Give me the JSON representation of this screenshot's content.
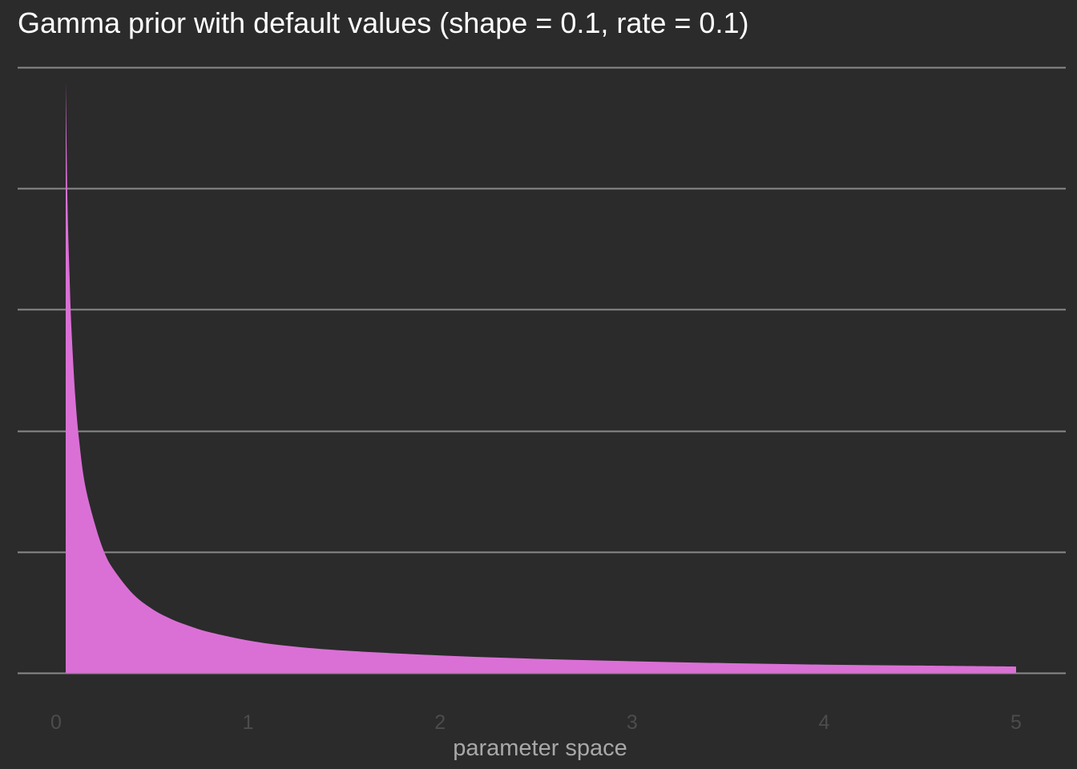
{
  "chart_data": {
    "type": "area",
    "title": "Gamma prior with default values (shape = 0.1, rate = 0.1)",
    "subtitle": "",
    "xlabel": "parameter space",
    "ylabel": "",
    "xlim": [
      0,
      5
    ],
    "ylim": [
      0,
      0.125
    ],
    "x_ticks": [
      0,
      1,
      2,
      3,
      4,
      5
    ],
    "x_tick_labels": [
      "0",
      "1",
      "2",
      "3",
      "4",
      "5"
    ],
    "y_gridlines": [
      0,
      0.025,
      0.05,
      0.075,
      0.1,
      0.125
    ],
    "y_tick_labels_shown": false,
    "grid": true,
    "legend": "none",
    "fill_color": "#da70d6",
    "background_color": "#2b2b2b",
    "series": [
      {
        "x": [
          0.05,
          0.06,
          0.07,
          0.08,
          0.1,
          0.12,
          0.15,
          0.2,
          0.25,
          0.3,
          0.4,
          0.5,
          0.6,
          0.7,
          0.8,
          1.0,
          1.2,
          1.5,
          2.0,
          2.5,
          3.0,
          3.5,
          4.0,
          4.5,
          5.0
        ],
        "y": [
          0.122,
          0.096,
          0.082,
          0.071,
          0.057,
          0.048,
          0.039,
          0.031,
          0.025,
          0.0213,
          0.0163,
          0.0132,
          0.0111,
          0.0096,
          0.0084,
          0.0067,
          0.0056,
          0.0046,
          0.0036,
          0.0029,
          0.0024,
          0.002,
          0.0017,
          0.0015,
          0.0013
        ]
      }
    ]
  }
}
